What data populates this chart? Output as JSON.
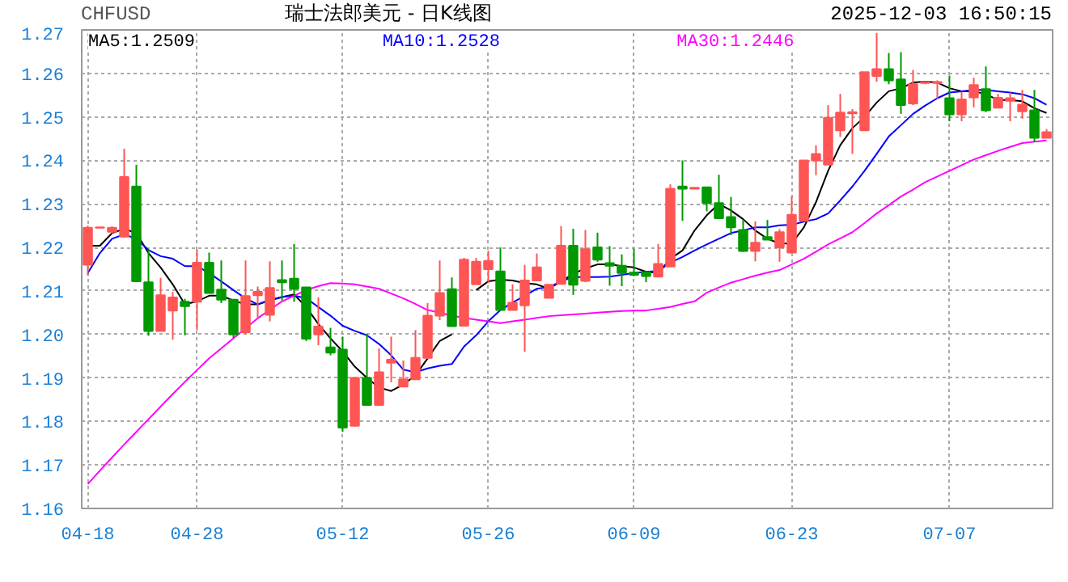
{
  "chart_data": {
    "type": "candlestick",
    "title": "瑞士法郎美元 - 日K线图",
    "annotations": [
      "CHFUSD",
      "2025-12-03 16:50:15"
    ],
    "categories": [
      "04-18",
      null,
      null,
      null,
      null,
      null,
      null,
      null,
      null,
      "04-28",
      null,
      null,
      null,
      null,
      null,
      null,
      null,
      null,
      null,
      null,
      null,
      "05-12",
      null,
      null,
      null,
      null,
      null,
      null,
      null,
      null,
      null,
      null,
      null,
      "05-26",
      null,
      null,
      null,
      null,
      null,
      null,
      null,
      null,
      null,
      null,
      null,
      "06-09",
      null,
      null,
      null,
      null,
      null,
      null,
      null,
      null,
      null,
      null,
      null,
      null,
      "06-23",
      null,
      null,
      null,
      null,
      null,
      null,
      null,
      null,
      null,
      null,
      null,
      null,
      "07-07",
      null,
      null,
      null,
      null,
      null,
      null,
      null,
      null
    ],
    "ohlc": [
      [
        1.216,
        1.225,
        1.2135,
        1.2245
      ],
      [
        1.2245,
        1.2247,
        1.2244,
        1.2246
      ],
      [
        1.2236,
        1.2248,
        1.2232,
        1.2245
      ],
      [
        1.2225,
        1.2427,
        1.2222,
        1.2362
      ],
      [
        1.234,
        1.239,
        1.212,
        1.2122
      ],
      [
        1.212,
        1.2195,
        1.1997,
        1.2008
      ],
      [
        1.2008,
        1.213,
        1.2008,
        1.209
      ],
      [
        1.2055,
        1.2098,
        1.1988,
        1.2085
      ],
      [
        1.2075,
        1.2082,
        1.1998,
        1.2065
      ],
      [
        1.2075,
        1.2195,
        1.201,
        1.2165
      ],
      [
        1.2165,
        1.2188,
        1.2095,
        1.2095
      ],
      [
        1.2103,
        1.217,
        1.2072,
        1.208
      ],
      [
        1.208,
        1.208,
        1.1992,
        1.2
      ],
      [
        1.2005,
        1.217,
        1.2,
        1.2088
      ],
      [
        1.209,
        1.211,
        1.2037,
        1.2098
      ],
      [
        1.2045,
        1.2168,
        1.203,
        1.2107
      ],
      [
        1.2125,
        1.217,
        1.2078,
        1.212
      ],
      [
        1.2128,
        1.2208,
        1.2075,
        1.2105
      ],
      [
        1.2108,
        1.2108,
        1.1985,
        1.199
      ],
      [
        1.2,
        1.2085,
        1.1975,
        1.2018
      ],
      [
        1.197,
        1.2015,
        1.1952,
        1.1958
      ],
      [
        1.1965,
        1.1995,
        1.1776,
        1.1786
      ],
      [
        1.179,
        1.19,
        1.1788,
        1.19
      ],
      [
        1.19,
        1.2001,
        1.1838,
        1.1838
      ],
      [
        1.1838,
        1.1968,
        1.1836,
        1.1913
      ],
      [
        1.1935,
        1.1995,
        1.189,
        1.1942
      ],
      [
        1.188,
        1.194,
        1.188,
        1.1897
      ],
      [
        1.1897,
        1.201,
        1.1897,
        1.1946
      ],
      [
        1.1946,
        1.2072,
        1.1944,
        1.2043
      ],
      [
        1.2043,
        1.217,
        1.2033,
        1.2095
      ],
      [
        1.2104,
        1.2131,
        1.2019,
        1.2019
      ],
      [
        1.202,
        1.2176,
        1.202,
        1.2172
      ],
      [
        1.2115,
        1.2176,
        1.2115,
        1.2167
      ],
      [
        1.215,
        1.2192,
        1.2118,
        1.2169
      ],
      [
        1.2145,
        1.22,
        1.2056,
        1.2056
      ],
      [
        1.2056,
        1.2115,
        1.2056,
        1.2073
      ],
      [
        1.2067,
        1.216,
        1.196,
        1.2124
      ],
      [
        1.2124,
        1.2186,
        1.2124,
        1.2154
      ],
      [
        1.2084,
        1.2114,
        1.2084,
        1.2114
      ],
      [
        1.2116,
        1.2249,
        1.2116,
        1.2204
      ],
      [
        1.2204,
        1.2243,
        1.2091,
        1.2114
      ],
      [
        1.2123,
        1.224,
        1.212,
        1.2196
      ],
      [
        1.22,
        1.2234,
        1.2167,
        1.2172
      ],
      [
        1.2164,
        1.2203,
        1.2112,
        1.2158
      ],
      [
        1.2158,
        1.2184,
        1.2111,
        1.2141
      ],
      [
        1.2142,
        1.2197,
        1.2134,
        1.2137
      ],
      [
        1.2143,
        1.2145,
        1.212,
        1.2134
      ],
      [
        1.2133,
        1.2208,
        1.2133,
        1.2162
      ],
      [
        1.2156,
        1.2345,
        1.2156,
        1.2335
      ],
      [
        1.234,
        1.24,
        1.2261,
        1.2335
      ],
      [
        1.2335,
        1.2338,
        1.2334,
        1.2337
      ],
      [
        1.2338,
        1.2338,
        1.2283,
        1.2302
      ],
      [
        1.2302,
        1.2367,
        1.2267,
        1.2267
      ],
      [
        1.227,
        1.2316,
        1.2228,
        1.2246
      ],
      [
        1.224,
        1.2263,
        1.219,
        1.2192
      ],
      [
        1.2192,
        1.226,
        1.2168,
        1.2211
      ],
      [
        1.2224,
        1.2263,
        1.2218,
        1.2218
      ],
      [
        1.22,
        1.2242,
        1.2167,
        1.2235
      ],
      [
        1.2188,
        1.2317,
        1.2188,
        1.2275
      ],
      [
        1.2261,
        1.24,
        1.2261,
        1.24
      ],
      [
        1.24,
        1.2435,
        1.2366,
        1.2415
      ],
      [
        1.239,
        1.2527,
        1.239,
        1.2498
      ],
      [
        1.2469,
        1.2553,
        1.2454,
        1.251
      ],
      [
        1.2508,
        1.2518,
        1.2415,
        1.2511
      ],
      [
        1.2469,
        1.2603,
        1.2469,
        1.2603
      ],
      [
        1.2594,
        1.2693,
        1.2581,
        1.261
      ],
      [
        1.261,
        1.2647,
        1.2575,
        1.2584
      ],
      [
        1.2586,
        1.2649,
        1.2507,
        1.2527
      ],
      [
        1.2531,
        1.2608,
        1.2527,
        1.2575
      ],
      [
        1.2578,
        1.2582,
        1.2575,
        1.258
      ],
      [
        1.2578,
        1.2584,
        1.2542,
        1.258
      ],
      [
        1.2543,
        1.2595,
        1.249,
        1.2506
      ],
      [
        1.2506,
        1.2558,
        1.249,
        1.254
      ],
      [
        1.2545,
        1.259,
        1.2522,
        1.2573
      ],
      [
        1.2564,
        1.2616,
        1.2511,
        1.2515
      ],
      [
        1.2521,
        1.2553,
        1.2521,
        1.2544
      ],
      [
        1.2537,
        1.2556,
        1.249,
        1.2543
      ],
      [
        1.2513,
        1.2562,
        1.2496,
        1.2528
      ],
      [
        1.2515,
        1.2562,
        1.2442,
        1.2452
      ],
      [
        1.2452,
        1.2472,
        1.2452,
        1.2465
      ]
    ],
    "colors": [
      "#ff5555",
      "#ff5555",
      "#ff5555",
      "#ff5555",
      "#009900",
      "#009900",
      "#ff5555",
      "#ff5555",
      "#009900",
      "#ff5555",
      "#009900",
      "#009900",
      "#009900",
      "#ff5555",
      "#ff5555",
      "#ff5555",
      "#009900",
      "#009900",
      "#009900",
      "#ff5555",
      "#009900",
      "#009900",
      "#ff5555",
      "#009900",
      "#ff5555",
      "#ff5555",
      "#ff5555",
      "#ff5555",
      "#ff5555",
      "#ff5555",
      "#009900",
      "#ff5555",
      "#ff5555",
      "#ff5555",
      "#009900",
      "#ff5555",
      "#ff5555",
      "#ff5555",
      "#ff5555",
      "#ff5555",
      "#009900",
      "#ff5555",
      "#009900",
      "#009900",
      "#009900",
      "#009900",
      "#009900",
      "#ff5555",
      "#ff5555",
      "#009900",
      "#ff5555",
      "#009900",
      "#009900",
      "#009900",
      "#009900",
      "#ff5555",
      "#009900",
      "#ff5555",
      "#ff5555",
      "#ff5555",
      "#ff5555",
      "#ff5555",
      "#ff5555",
      "#ff5555",
      "#ff5555",
      "#ff5555",
      "#009900",
      "#009900",
      "#ff5555",
      "#ff5555",
      "#ff5555",
      "#009900",
      "#ff5555",
      "#ff5555",
      "#009900",
      "#ff5555",
      "#ff5555",
      "#ff5555",
      "#009900",
      "#ff5555"
    ],
    "series": [
      {
        "type": "line",
        "name": "MA5:1.2509",
        "color": "#000000",
        "values": [
          1.2204,
          1.2204,
          1.2233,
          1.2243,
          1.2233,
          1.2187,
          1.2154,
          1.2115,
          1.2069,
          1.2076,
          1.2089,
          1.2089,
          1.2078,
          1.2069,
          1.2069,
          1.2078,
          1.2086,
          1.2092,
          1.2063,
          1.2024,
          1.1991,
          1.1961,
          1.1926,
          1.19,
          1.1878,
          1.187,
          1.1885,
          1.1906,
          1.1945,
          1.1985,
          1.2,
          null,
          1.2102,
          1.2122,
          1.2126,
          1.2124,
          1.2118,
          1.2115,
          1.2105,
          1.2122,
          1.2139,
          1.2152,
          1.2161,
          1.2161,
          1.2157,
          1.2154,
          1.2144,
          1.2141,
          1.2174,
          1.2193,
          1.2239,
          1.2274,
          1.23,
          1.2285,
          1.2265,
          1.2239,
          1.222,
          1.2209,
          1.2209,
          1.2246,
          1.2304,
          1.2376,
          1.2435,
          1.2474,
          1.25,
          1.2533,
          1.2559,
          1.2566,
          1.2579,
          1.2581,
          1.2579,
          1.2566,
          1.2559,
          1.2559,
          1.2552,
          1.2539,
          1.2539,
          1.2536,
          1.252,
          1.2509
        ]
      },
      {
        "type": "line",
        "name": "MA10:1.2528",
        "color": "#0000ff",
        "values": [
          1.2141,
          1.2187,
          1.222,
          1.223,
          1.222,
          1.2194,
          1.218,
          1.2174,
          1.2157,
          1.2157,
          1.2141,
          1.2122,
          1.2102,
          1.2083,
          1.2069,
          1.208,
          1.2086,
          1.2089,
          1.2083,
          1.2063,
          1.2043,
          1.202,
          1.2008,
          1.1998,
          1.1978,
          1.1952,
          1.1919,
          1.1913,
          1.1922,
          1.1928,
          1.1932,
          1.1972,
          1.1998,
          1.203,
          1.2056,
          1.2073,
          1.2089,
          1.2105,
          1.2109,
          1.2122,
          1.2132,
          1.2132,
          1.2132,
          1.2133,
          1.2137,
          1.2141,
          1.2144,
          1.2146,
          1.2165,
          1.2178,
          1.2193,
          1.2207,
          1.222,
          1.2233,
          1.2239,
          1.2246,
          1.2246,
          1.2251,
          1.2252,
          1.2259,
          1.2265,
          1.2278,
          1.2308,
          1.234,
          1.2376,
          1.2415,
          1.2455,
          1.2481,
          1.2507,
          1.2526,
          1.2543,
          1.2556,
          1.2559,
          1.2562,
          1.2562,
          1.2559,
          1.2556,
          1.2552,
          1.2543,
          1.2528
        ]
      },
      {
        "type": "line",
        "name": "MA30:1.2446",
        "color": "#ff00ff",
        "values": [
          1.1656,
          1.1687,
          1.1717,
          1.1747,
          1.1776,
          1.1805,
          1.1834,
          1.1863,
          1.1891,
          1.1918,
          1.1945,
          1.1968,
          1.1991,
          1.2014,
          1.2037,
          1.2057,
          1.2076,
          1.2089,
          1.2102,
          1.2111,
          1.2118,
          1.2117,
          1.2115,
          1.211,
          1.2105,
          1.2094,
          1.2083,
          1.207,
          1.2056,
          1.205,
          1.2043,
          1.2038,
          1.2034,
          1.203,
          1.2026,
          1.203,
          1.2034,
          1.2038,
          1.2042,
          1.2044,
          1.2046,
          1.2048,
          1.205,
          1.2052,
          1.2054,
          1.2055,
          1.2055,
          1.2059,
          1.2063,
          1.207,
          1.2076,
          1.2096,
          1.2108,
          1.2119,
          1.2127,
          1.2135,
          1.2142,
          1.2148,
          1.2161,
          1.2174,
          1.219,
          1.2207,
          1.2221,
          1.2235,
          1.2256,
          1.2278,
          1.2297,
          1.2317,
          1.2333,
          1.235,
          1.2363,
          1.2376,
          1.2389,
          1.2402,
          1.2412,
          1.2422,
          1.2431,
          1.244,
          1.2443,
          1.2446
        ]
      }
    ],
    "ylim": [
      1.16,
      1.27
    ],
    "yticks": [
      {
        "value": 1.16,
        "label": "1.16"
      },
      {
        "value": 1.17,
        "label": "1.17"
      },
      {
        "value": 1.18,
        "label": "1.18"
      },
      {
        "value": 1.19,
        "label": "1.19"
      },
      {
        "value": 1.2,
        "label": "1.20"
      },
      {
        "value": 1.21,
        "label": "1.21"
      },
      {
        "value": 1.22,
        "label": "1.22"
      },
      {
        "value": 1.23,
        "label": "1.23"
      },
      {
        "value": 1.24,
        "label": "1.24"
      },
      {
        "value": 1.25,
        "label": "1.25"
      },
      {
        "value": 1.26,
        "label": "1.26"
      },
      {
        "value": 1.27,
        "label": "1.27"
      }
    ],
    "grid": true,
    "legend": "top",
    "line_style": "solid"
  }
}
